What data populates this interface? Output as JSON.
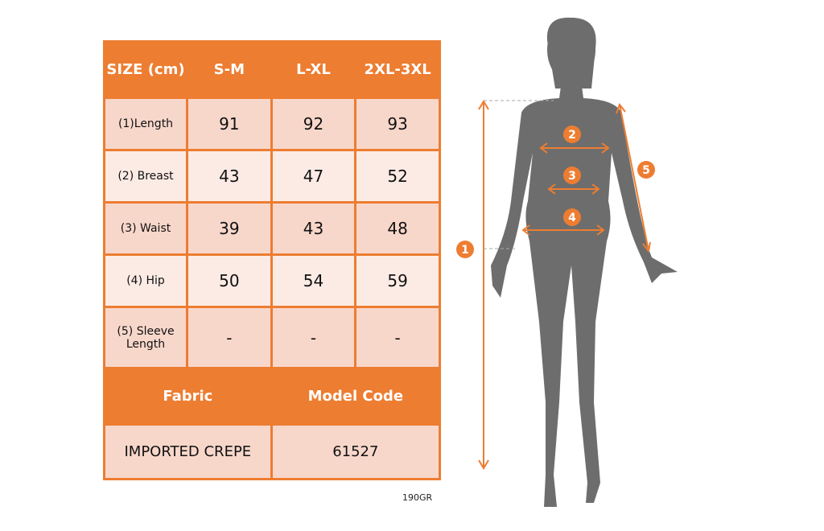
{
  "table": {
    "header": [
      "SIZE (cm)",
      "S-M",
      "L-XL",
      "2XL-3XL"
    ],
    "rows": [
      {
        "label": "(1)Length",
        "values": [
          "91",
          "92",
          "93"
        ]
      },
      {
        "label": "(2) Breast",
        "values": [
          "43",
          "47",
          "52"
        ]
      },
      {
        "label": "(3) Waist",
        "values": [
          "39",
          "43",
          "48"
        ]
      },
      {
        "label": "(4) Hip",
        "values": [
          "50",
          "54",
          "59"
        ]
      },
      {
        "label": "(5) Sleeve Length",
        "values": [
          "-",
          "-",
          "-"
        ]
      }
    ],
    "footer_headers": [
      "Fabric",
      "Model Code"
    ],
    "footer_values": [
      "IMPORTED CREPE",
      "61527"
    ]
  },
  "weight_note": "190GR",
  "figure": {
    "markers": [
      "1",
      "2",
      "3",
      "4",
      "5"
    ]
  },
  "colors": {
    "accent": "#ed7d31",
    "row_dark": "#f8d7cb",
    "row_light": "#fcebe5",
    "silhouette": "#6d6d6d"
  }
}
